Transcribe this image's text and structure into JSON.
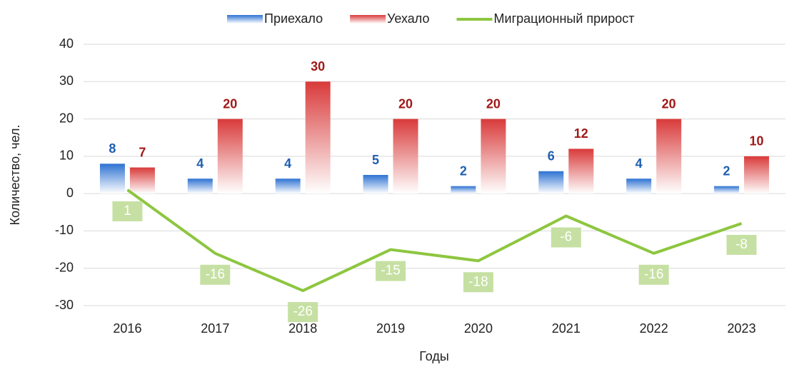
{
  "chart_data": {
    "type": "bar",
    "categories": [
      "2016",
      "2017",
      "2018",
      "2019",
      "2020",
      "2021",
      "2022",
      "2023"
    ],
    "series": [
      {
        "name": "Приехало",
        "type": "bar",
        "color": "#2e72d2",
        "label_color": "#1f5fb0",
        "values": [
          8,
          4,
          4,
          5,
          2,
          6,
          4,
          2
        ]
      },
      {
        "name": "Уехало",
        "type": "bar",
        "color": "#d93a3a",
        "label_color": "#a01818",
        "values": [
          7,
          20,
          30,
          20,
          20,
          12,
          20,
          10
        ]
      },
      {
        "name": "Миграционный прирост",
        "type": "line",
        "color": "#8dc63f",
        "label_color": "#c6e0a3",
        "values": [
          1,
          -16,
          -26,
          -15,
          -18,
          -6,
          -16,
          -8
        ]
      }
    ],
    "xlabel": "Годы",
    "ylabel": "Количество, чел.",
    "ylim": [
      -30,
      40
    ],
    "yticks": [
      -30,
      -20,
      -10,
      0,
      10,
      20,
      30,
      40
    ],
    "grid": true,
    "legend": "top"
  }
}
